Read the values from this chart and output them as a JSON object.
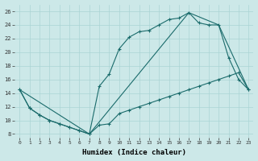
{
  "xlabel": "Humidex (Indice chaleur)",
  "bg_color": "#cce8e8",
  "line_color": "#1a6b6b",
  "xlim": [
    -0.5,
    23.5
  ],
  "ylim": [
    7.5,
    27
  ],
  "xticks": [
    0,
    1,
    2,
    3,
    4,
    5,
    6,
    7,
    8,
    9,
    10,
    11,
    12,
    13,
    14,
    15,
    16,
    17,
    18,
    19,
    20,
    21,
    22,
    23
  ],
  "yticks": [
    8,
    10,
    12,
    14,
    16,
    18,
    20,
    22,
    24,
    26
  ],
  "line1_x": [
    0,
    1,
    2,
    3,
    4,
    5,
    6,
    7,
    8,
    9,
    10,
    11,
    12,
    13,
    14,
    15,
    16,
    17,
    18,
    19,
    20,
    21,
    22,
    23
  ],
  "line1_y": [
    14.5,
    11.8,
    10.8,
    10.0,
    9.5,
    9.0,
    8.5,
    8.0,
    9.3,
    9.5,
    11.0,
    11.5,
    12.0,
    12.5,
    13.0,
    13.5,
    14.0,
    14.5,
    15.0,
    15.5,
    16.0,
    16.5,
    17.0,
    14.5
  ],
  "line2_x": [
    0,
    1,
    2,
    3,
    4,
    5,
    6,
    7,
    8,
    9,
    10,
    11,
    12,
    13,
    14,
    15,
    16,
    17,
    18,
    19,
    20,
    21,
    22,
    23
  ],
  "line2_y": [
    14.5,
    11.8,
    10.8,
    10.0,
    9.5,
    9.0,
    8.5,
    8.0,
    15.0,
    16.8,
    20.5,
    22.2,
    23.0,
    23.2,
    24.0,
    24.8,
    25.0,
    25.8,
    24.3,
    24.0,
    24.0,
    19.2,
    16.0,
    14.5
  ],
  "line3_x": [
    0,
    7,
    17,
    20,
    23
  ],
  "line3_y": [
    14.5,
    8.0,
    25.8,
    24.0,
    14.5
  ],
  "grid_color": "#aad4d4",
  "marker": "+",
  "markersize": 3,
  "linewidth": 0.8
}
